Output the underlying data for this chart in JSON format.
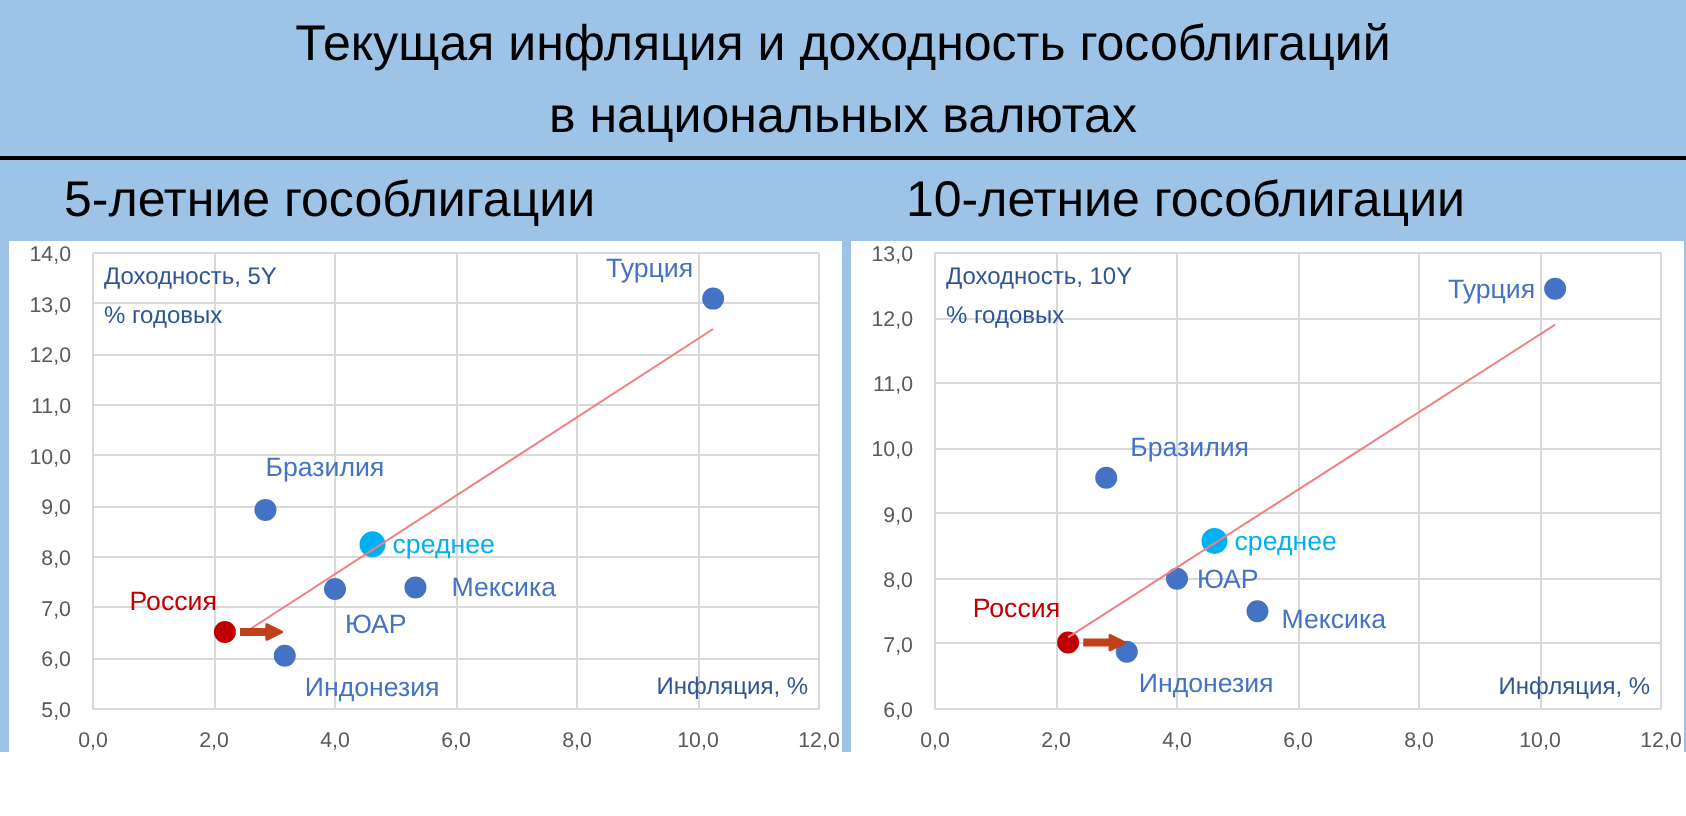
{
  "chart_data": [
    {
      "type": "scatter",
      "title": "Текущая инфляция и доходность гособлигаций\nв национальных валютах",
      "subtitle": "5-летние гособлигации",
      "xlabel": "Инфляция, %",
      "ylabel": "Доходность, 5Y\n% годовых",
      "marker": "circle",
      "grid": true,
      "xlim": [
        0,
        12
      ],
      "xticks": [
        {
          "value": 0,
          "label": "0,0"
        },
        {
          "value": 2,
          "label": "2,0"
        },
        {
          "value": 4,
          "label": "4,0"
        },
        {
          "value": 6,
          "label": "6,0"
        },
        {
          "value": 8,
          "label": "8,0"
        },
        {
          "value": 10,
          "label": "10,0"
        },
        {
          "value": 12,
          "label": "12,0"
        }
      ],
      "ylim": [
        5,
        14
      ],
      "yticks": [
        {
          "value": 5,
          "label": "5,0"
        },
        {
          "value": 6,
          "label": "6,0"
        },
        {
          "value": 7,
          "label": "7,0"
        },
        {
          "value": 8,
          "label": "8,0"
        },
        {
          "value": 9,
          "label": "9,0"
        },
        {
          "value": 10,
          "label": "10,0"
        },
        {
          "value": 11,
          "label": "11,0"
        },
        {
          "value": 12,
          "label": "12,0"
        },
        {
          "value": 13,
          "label": "13,0"
        },
        {
          "value": 14,
          "label": "14,0"
        }
      ],
      "series": [
        {
          "name": "Турция",
          "color": "#4472c4",
          "x": [
            10.25
          ],
          "values": [
            13.1
          ]
        },
        {
          "name": "Бразилия",
          "color": "#4472c4",
          "x": [
            2.85
          ],
          "values": [
            8.93
          ]
        },
        {
          "name": "среднее",
          "color": "#00b0f0",
          "x": [
            4.62
          ],
          "values": [
            8.25
          ]
        },
        {
          "name": "ЮАР",
          "color": "#4472c4",
          "x": [
            4.0
          ],
          "values": [
            7.37
          ]
        },
        {
          "name": "Мексика",
          "color": "#4472c4",
          "x": [
            5.33
          ],
          "values": [
            7.4
          ]
        },
        {
          "name": "Россия",
          "color": "#c00000",
          "x": [
            2.18
          ],
          "values": [
            6.52
          ]
        },
        {
          "name": "Индонезия",
          "color": "#4472c4",
          "x": [
            3.17
          ],
          "values": [
            6.05
          ]
        },
        {
          "type": "line",
          "marker": "none",
          "color": "#f08080",
          "x": [
            2.5,
            10.25
          ],
          "values": [
            6.5,
            12.5
          ]
        }
      ]
    },
    {
      "type": "scatter",
      "subtitle": "10-летние гособлигации",
      "xlabel": "Инфляция, %",
      "ylabel": "Доходность, 10Y\n% годовых",
      "marker": "circle",
      "grid": true,
      "xlim": [
        0,
        12
      ],
      "xticks": [
        {
          "value": 0,
          "label": "0,0"
        },
        {
          "value": 2,
          "label": "2,0"
        },
        {
          "value": 4,
          "label": "4,0"
        },
        {
          "value": 6,
          "label": "6,0"
        },
        {
          "value": 8,
          "label": "8,0"
        },
        {
          "value": 10,
          "label": "10,0"
        },
        {
          "value": 12,
          "label": "12,0"
        }
      ],
      "ylim": [
        6,
        13
      ],
      "yticks": [
        {
          "value": 6,
          "label": "6,0"
        },
        {
          "value": 7,
          "label": "7,0"
        },
        {
          "value": 8,
          "label": "8,0"
        },
        {
          "value": 9,
          "label": "9,0"
        },
        {
          "value": 10,
          "label": "10,0"
        },
        {
          "value": 11,
          "label": "11,0"
        },
        {
          "value": 12,
          "label": "12,0"
        },
        {
          "value": 13,
          "label": "13,0"
        }
      ],
      "series": [
        {
          "name": "Турция",
          "color": "#4472c4",
          "x": [
            10.25
          ],
          "values": [
            12.45
          ]
        },
        {
          "name": "Бразилия",
          "color": "#4472c4",
          "x": [
            2.83
          ],
          "values": [
            9.55
          ]
        },
        {
          "name": "среднее",
          "color": "#00b0f0",
          "x": [
            4.62
          ],
          "values": [
            8.58
          ]
        },
        {
          "name": "ЮАР",
          "color": "#4472c4",
          "x": [
            4.0
          ],
          "values": [
            8.0
          ]
        },
        {
          "name": "Мексика",
          "color": "#4472c4",
          "x": [
            5.33
          ],
          "values": [
            7.5
          ]
        },
        {
          "name": "Россия",
          "color": "#c00000",
          "x": [
            2.2
          ],
          "values": [
            7.02
          ]
        },
        {
          "name": "Индонезия",
          "color": "#4472c4",
          "x": [
            3.17
          ],
          "values": [
            6.88
          ]
        },
        {
          "type": "line",
          "marker": "none",
          "color": "#f08080",
          "x": [
            2.2,
            10.25
          ],
          "values": [
            7.1,
            11.9
          ]
        }
      ]
    }
  ]
}
